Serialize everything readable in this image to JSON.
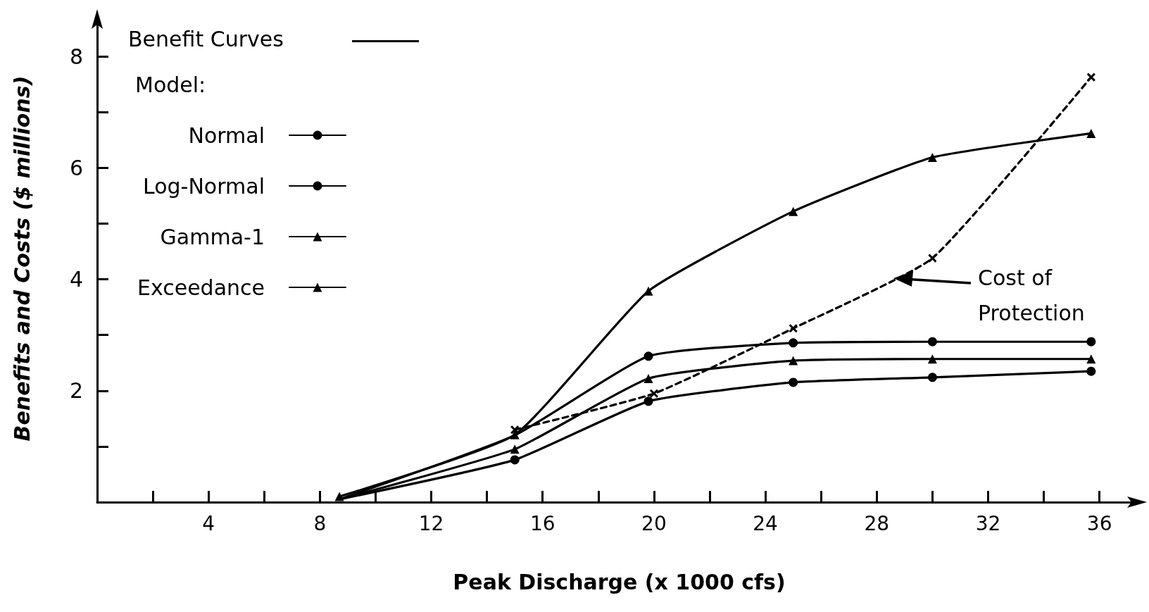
{
  "chart_data": {
    "type": "line",
    "xlabel": "Peak Discharge (x 1000 cfs)",
    "ylabel": "Benefits and Costs ($ millions)",
    "legend_title": "Model:",
    "legend": "top left",
    "grid": false,
    "line_style": "solid",
    "xlim": [
      0,
      37.5
    ],
    "xticks": [
      {
        "value": 2,
        "label": null
      },
      4,
      {
        "value": 6,
        "label": null
      },
      8,
      {
        "value": 10,
        "label": null
      },
      12,
      {
        "value": 14,
        "label": null
      },
      16,
      {
        "value": 18,
        "label": null
      },
      20,
      {
        "value": 22,
        "label": null
      },
      24,
      {
        "value": 26,
        "label": null
      },
      28,
      {
        "value": 30,
        "label": null
      },
      32,
      {
        "value": 34,
        "label": null
      },
      36
    ],
    "ylim": [
      0,
      8.75
    ],
    "yticks": [
      {
        "value": 1,
        "label": null
      },
      2,
      {
        "value": 3,
        "label": null
      },
      4,
      {
        "value": 5,
        "label": null
      },
      6,
      {
        "value": 7,
        "label": null
      },
      8
    ],
    "annotations": [
      "Benefit Curves",
      "Cost of Protection"
    ],
    "x": [
      8.7,
      15,
      19.8,
      25,
      30,
      35.7
    ],
    "series": [
      {
        "name": "Normal",
        "color": "#000000",
        "marker": "circle",
        "values": [
          0.05,
          1.2,
          2.62,
          2.86,
          2.88,
          2.88
        ]
      },
      {
        "name": "Log-Normal",
        "color": "#000000",
        "marker": "circle",
        "values": [
          0.05,
          0.76,
          1.81,
          2.15,
          2.24,
          2.35
        ]
      },
      {
        "name": "Gamma-1",
        "color": "#000000",
        "marker": "triangle",
        "values": [
          0.05,
          0.95,
          2.22,
          2.54,
          2.57,
          2.57
        ]
      },
      {
        "name": "Exceedance",
        "color": "#000000",
        "marker": "triangle",
        "values": [
          0.1,
          1.21,
          3.79,
          5.22,
          6.19,
          6.62
        ]
      },
      {
        "color": "#000000",
        "marker": "cross",
        "line_style": "dashed",
        "x": [
          15,
          20,
          25,
          30,
          35.7
        ],
        "values": [
          1.3,
          1.95,
          3.12,
          4.38,
          7.63
        ]
      }
    ]
  }
}
